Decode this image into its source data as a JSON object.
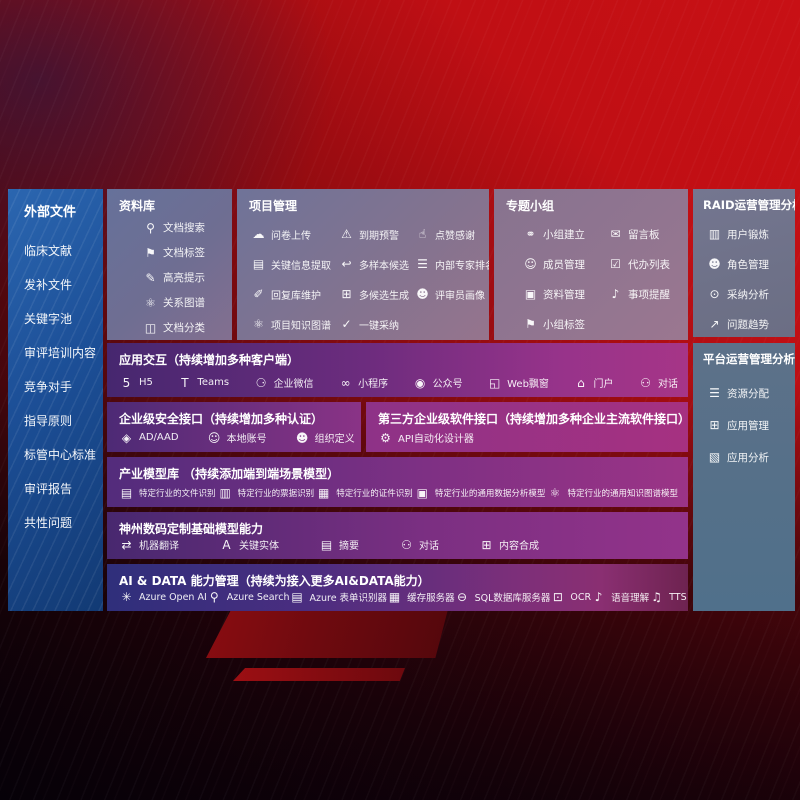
{
  "colors": {
    "background_red": "#c00f14",
    "sidebar_blue": "#1e5ba6",
    "box_slate": "#6e7590",
    "band_purple": "#8d3188",
    "aidata_indigo": "#30307a",
    "text": "#ffffff"
  },
  "sidebar": {
    "title": "外部文件",
    "items": [
      {
        "label": "临床文献"
      },
      {
        "label": "发补文件"
      },
      {
        "label": "关键字池"
      },
      {
        "label": "审评培训内容"
      },
      {
        "label": "竞争对手"
      },
      {
        "label": "指导原则"
      },
      {
        "label": "标管中心标准"
      },
      {
        "label": "审评报告"
      },
      {
        "label": "共性问题"
      }
    ]
  },
  "boxes": {
    "repository": {
      "title": "资料库",
      "items": [
        {
          "icon": "doc-search-icon",
          "glyph": "⚲",
          "label": "文档搜索"
        },
        {
          "icon": "doc-tag-icon",
          "glyph": "⚑",
          "label": "文档标签"
        },
        {
          "icon": "highlight-tip-icon",
          "glyph": "✎",
          "label": "高亮提示"
        },
        {
          "icon": "relation-graph-icon",
          "glyph": "⚛",
          "label": "关系图谱"
        },
        {
          "icon": "doc-classify-icon",
          "glyph": "◫",
          "label": "文档分类"
        }
      ]
    },
    "project": {
      "title": "项目管理",
      "items": [
        {
          "icon": "questionnaire-upload-icon",
          "glyph": "☁",
          "label": "问卷上传"
        },
        {
          "icon": "due-alert-icon",
          "glyph": "⚠",
          "label": "到期预警"
        },
        {
          "icon": "like-thanks-icon",
          "glyph": "☝",
          "label": "点赞感谢"
        },
        {
          "icon": "key-info-extract-icon",
          "glyph": "▤",
          "label": "关键信息提取"
        },
        {
          "icon": "multi-sample-candidate-icon",
          "glyph": "↩",
          "label": "多样本候选"
        },
        {
          "icon": "expert-ranking-icon",
          "glyph": "☰",
          "label": "内部专家排名"
        },
        {
          "icon": "reply-library-icon",
          "glyph": "✐",
          "label": "回复库维护"
        },
        {
          "icon": "multi-candidate-gen-icon",
          "glyph": "⊞",
          "label": "多候选生成"
        },
        {
          "icon": "reviewer-profile-icon",
          "glyph": "☻",
          "label": "评审员画像"
        },
        {
          "icon": "project-knowledge-graph-icon",
          "glyph": "⚛",
          "label": "项目知识图谱"
        },
        {
          "icon": "one-click-adopt-icon",
          "glyph": "✓",
          "label": "一键采纳"
        }
      ]
    },
    "groups": {
      "title": "专题小组",
      "items": [
        {
          "icon": "group-create-icon",
          "glyph": "⚭",
          "label": "小组建立"
        },
        {
          "icon": "bbs-board-icon",
          "glyph": "✉",
          "label": "留言板"
        },
        {
          "icon": "member-manage-icon",
          "glyph": "☺",
          "label": "成员管理"
        },
        {
          "icon": "todo-list-icon",
          "glyph": "☑",
          "label": "代办列表"
        },
        {
          "icon": "material-manage-icon",
          "glyph": "▣",
          "label": "资料管理"
        },
        {
          "icon": "reminder-bell-icon",
          "glyph": "♪",
          "label": "事项提醒"
        },
        {
          "icon": "group-tag-icon",
          "glyph": "⚑",
          "label": "小组标签"
        }
      ]
    },
    "raid": {
      "title": "RAID运营管理分析",
      "items": [
        {
          "icon": "user-training-icon",
          "glyph": "▥",
          "label": "用户锻炼"
        },
        {
          "icon": "role-manage-icon",
          "glyph": "☻",
          "label": "角色管理"
        },
        {
          "icon": "adoption-analysis-icon",
          "glyph": "⊙",
          "label": "采纳分析"
        },
        {
          "icon": "issue-trend-icon",
          "glyph": "↗",
          "label": "问题趋势"
        }
      ]
    },
    "platform": {
      "title": "平台运营管理分析",
      "items": [
        {
          "icon": "resource-alloc-icon",
          "glyph": "☰",
          "label": "资源分配"
        },
        {
          "icon": "app-manage-icon",
          "glyph": "⊞",
          "label": "应用管理"
        },
        {
          "icon": "app-analysis-icon",
          "glyph": "▧",
          "label": "应用分析"
        }
      ]
    },
    "interaction": {
      "title": "应用交互（持续增加多种客户端）",
      "items": [
        {
          "icon": "h5-icon",
          "glyph": "5",
          "label": "H5"
        },
        {
          "icon": "teams-icon",
          "glyph": "T",
          "label": "Teams"
        },
        {
          "icon": "wecom-icon",
          "glyph": "⚆",
          "label": "企业微信"
        },
        {
          "icon": "mini-program-icon",
          "glyph": "∞",
          "label": "小程序"
        },
        {
          "icon": "official-account-icon",
          "glyph": "◉",
          "label": "公众号"
        },
        {
          "icon": "web-popup-icon",
          "glyph": "◱",
          "label": "Web飘窗"
        },
        {
          "icon": "portal-icon",
          "glyph": "⌂",
          "label": "门户"
        },
        {
          "icon": "dialog-icon",
          "glyph": "⚇",
          "label": "对话"
        }
      ]
    },
    "security": {
      "title": "企业级安全接口（持续增加多种认证）",
      "items": [
        {
          "icon": "ad-aad-icon",
          "glyph": "◈",
          "label": "AD/AAD"
        },
        {
          "icon": "local-account-icon",
          "glyph": "☺",
          "label": "本地账号"
        },
        {
          "icon": "org-define-icon",
          "glyph": "☻",
          "label": "组织定义"
        }
      ]
    },
    "thirdparty": {
      "title": "第三方企业级软件接口（持续增加多种企业主流软件接口）",
      "items": [
        {
          "icon": "api-auto-designer-icon",
          "glyph": "⚙",
          "label": "API自动化设计器"
        }
      ]
    },
    "industry": {
      "title": "产业模型库 （持续添加端到端场景模型）",
      "items": [
        {
          "icon": "industry-file-recognize-icon",
          "glyph": "▤",
          "label": "特定行业的文件识别"
        },
        {
          "icon": "industry-invoice-recognize-icon",
          "glyph": "▥",
          "label": "特定行业的票据识别"
        },
        {
          "icon": "industry-idcard-recognize-icon",
          "glyph": "▦",
          "label": "特定行业的证件识别"
        },
        {
          "icon": "industry-data-analysis-model-icon",
          "glyph": "▣",
          "label": "特定行业的通用数据分析模型"
        },
        {
          "icon": "industry-knowledge-graph-model-icon",
          "glyph": "⚛",
          "label": "特定行业的通用知识图谱模型"
        }
      ]
    },
    "digitalchina": {
      "title": "神州数码定制基础模型能力",
      "items": [
        {
          "icon": "machine-translate-icon",
          "glyph": "⇄",
          "label": "机器翻译"
        },
        {
          "icon": "key-entity-icon",
          "glyph": "A",
          "label": "关键实体"
        },
        {
          "icon": "summary-icon",
          "glyph": "▤",
          "label": "摘要"
        },
        {
          "icon": "dialog-icon",
          "glyph": "⚇",
          "label": "对话"
        },
        {
          "icon": "content-compose-icon",
          "glyph": "⊞",
          "label": "内容合成"
        }
      ]
    },
    "aidata": {
      "title": "AI & DATA 能力管理（持续为接入更多AI&DATA能力）",
      "items": [
        {
          "icon": "azure-openai-icon",
          "glyph": "✳",
          "label": "Azure Open AI"
        },
        {
          "icon": "azure-search-icon",
          "glyph": "⚲",
          "label": "Azure Search"
        },
        {
          "icon": "azure-form-recognizer-icon",
          "glyph": "▤",
          "label": "Azure 表单识别器"
        },
        {
          "icon": "cache-server-icon",
          "glyph": "▦",
          "label": "缓存服务器"
        },
        {
          "icon": "sql-db-server-icon",
          "glyph": "⊖",
          "label": "SQL数据库服务器"
        },
        {
          "icon": "ocr-icon",
          "glyph": "⊡",
          "label": "OCR"
        },
        {
          "icon": "speech-understand-icon",
          "glyph": "♪",
          "label": "语音理解"
        },
        {
          "icon": "tts-icon",
          "glyph": "♫",
          "label": "TTS"
        }
      ]
    }
  }
}
